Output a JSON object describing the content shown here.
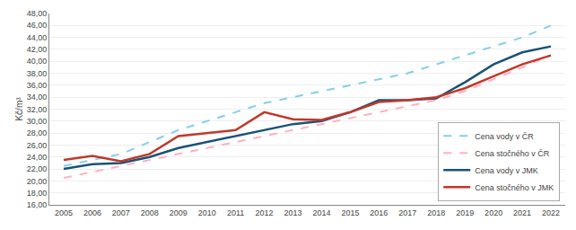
{
  "chart_data": {
    "type": "line",
    "y_label": "Kč/m³",
    "x": [
      2005,
      2006,
      2007,
      2008,
      2009,
      2010,
      2011,
      2012,
      2013,
      2014,
      2015,
      2016,
      2017,
      2018,
      2019,
      2020,
      2021,
      2022
    ],
    "series": [
      {
        "name": "Cena vody v ČR",
        "color": "#87CEEB",
        "line_style": "dashed",
        "values": [
          22.5,
          23.5,
          24.5,
          26.5,
          28.5,
          30.0,
          31.5,
          33.0,
          34.0,
          35.0,
          36.0,
          37.0,
          38.0,
          39.5,
          41.0,
          42.5,
          44.0,
          46.0
        ]
      },
      {
        "name": "Cena stočného v ČR",
        "color": "#FFB0C0",
        "line_style": "dashed",
        "values": [
          20.5,
          21.5,
          22.5,
          23.5,
          24.5,
          25.5,
          26.5,
          27.5,
          28.5,
          29.5,
          30.5,
          31.5,
          32.5,
          33.5,
          35.0,
          37.0,
          39.0,
          41.0
        ]
      },
      {
        "name": "Cena vody v JMK",
        "color": "#1A5276",
        "line_style": "solid",
        "values": [
          22.0,
          22.8,
          23.0,
          24.0,
          25.5,
          26.5,
          27.5,
          28.5,
          29.5,
          30.0,
          31.5,
          33.5,
          33.5,
          33.8,
          36.5,
          39.5,
          41.5,
          42.5
        ]
      },
      {
        "name": "Cena stočného v JMK",
        "color": "#C0392B",
        "line_style": "solid",
        "values": [
          23.5,
          24.2,
          23.3,
          24.5,
          27.5,
          28.0,
          28.5,
          31.5,
          30.3,
          30.2,
          31.5,
          33.2,
          33.5,
          34.0,
          35.5,
          37.5,
          39.5,
          41.0
        ]
      }
    ],
    "xlim": [
      2004.5,
      2022.5
    ],
    "xticks": [
      2005,
      2006,
      2007,
      2008,
      2009,
      2010,
      2011,
      2012,
      2013,
      2014,
      2015,
      2016,
      2017,
      2018,
      2019,
      2020,
      2021,
      2022
    ],
    "ylim": [
      16.0,
      48.0
    ],
    "yticks": [
      {
        "value": 16.0,
        "label": "16,00"
      },
      {
        "value": 18.0,
        "label": "18,00"
      },
      {
        "value": 20.0,
        "label": "20,00"
      },
      {
        "value": 22.0,
        "label": "22,00"
      },
      {
        "value": 24.0,
        "label": "24,00"
      },
      {
        "value": 26.0,
        "label": "26,00"
      },
      {
        "value": 28.0,
        "label": "28,00"
      },
      {
        "value": 30.0,
        "label": "30,00"
      },
      {
        "value": 32.0,
        "label": "32,00"
      },
      {
        "value": 34.0,
        "label": "34,00"
      },
      {
        "value": 36.0,
        "label": "36,00"
      },
      {
        "value": 38.0,
        "label": "38,00"
      },
      {
        "value": 40.0,
        "label": "40,00"
      },
      {
        "value": 42.0,
        "label": "42,00"
      },
      {
        "value": 44.0,
        "label": "44,00"
      },
      {
        "value": 46.0,
        "label": "46,00"
      },
      {
        "value": 48.0,
        "label": "48,00"
      }
    ],
    "grid": "y",
    "legend": "lower right"
  }
}
